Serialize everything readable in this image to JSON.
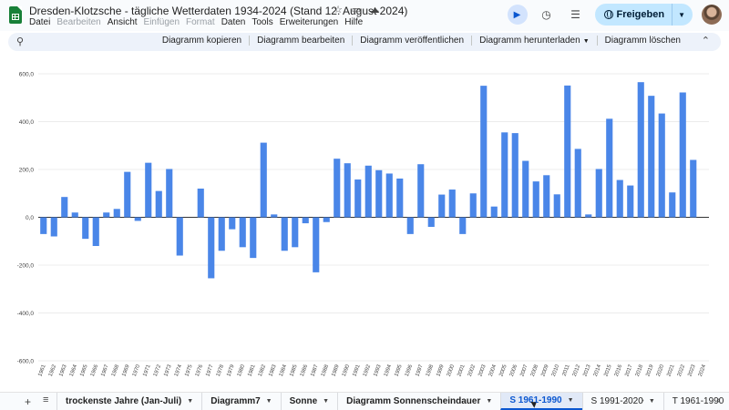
{
  "document": {
    "title": "Dresden-Klotzsche - tägliche Wetterdaten 1934-2024 (Stand 12. August 2024)"
  },
  "menu": [
    {
      "label": "Datei",
      "enabled": true
    },
    {
      "label": "Bearbeiten",
      "enabled": false
    },
    {
      "label": "Ansicht",
      "enabled": true
    },
    {
      "label": "Einfügen",
      "enabled": false
    },
    {
      "label": "Format",
      "enabled": false
    },
    {
      "label": "Daten",
      "enabled": true
    },
    {
      "label": "Tools",
      "enabled": true
    },
    {
      "label": "Erweiterungen",
      "enabled": true
    },
    {
      "label": "Hilfe",
      "enabled": true
    }
  ],
  "header": {
    "share_label": "Freigeben"
  },
  "chart_toolbar": {
    "actions": [
      "Diagramm kopieren",
      "Diagramm bearbeiten",
      "Diagramm veröffentlichen",
      "Diagramm herunterladen",
      "Diagramm löschen"
    ]
  },
  "chart_data": {
    "type": "bar",
    "categories": [
      "1961",
      "1962",
      "1963",
      "1964",
      "1965",
      "1966",
      "1967",
      "1968",
      "1969",
      "1970",
      "1971",
      "1972",
      "1973",
      "1974",
      "1975",
      "1976",
      "1977",
      "1978",
      "1979",
      "1980",
      "1981",
      "1982",
      "1983",
      "1984",
      "1985",
      "1986",
      "1987",
      "1988",
      "1989",
      "1990",
      "1991",
      "1992",
      "1993",
      "1994",
      "1995",
      "1996",
      "1997",
      "1998",
      "1999",
      "2000",
      "2001",
      "2002",
      "2003",
      "2004",
      "2005",
      "2006",
      "2007",
      "2008",
      "2009",
      "2010",
      "2011",
      "2012",
      "2013",
      "2014",
      "2015",
      "2016",
      "2017",
      "2018",
      "2019",
      "2020",
      "2021",
      "2022",
      "2023",
      "2024"
    ],
    "values": [
      -70,
      -80,
      85,
      20,
      -90,
      -120,
      20,
      35,
      190,
      -15,
      228,
      110,
      202,
      -160,
      0,
      120,
      -255,
      -140,
      -50,
      -125,
      -170,
      312,
      12,
      -140,
      -125,
      -25,
      -230,
      -20,
      245,
      226,
      158,
      216,
      197,
      183,
      162,
      -70,
      222,
      -40,
      95,
      116,
      -70,
      100,
      550,
      45,
      355,
      352,
      236,
      150,
      176,
      96,
      551,
      286,
      12,
      202,
      412,
      156,
      133,
      565,
      508,
      434,
      104,
      522,
      240,
      0
    ],
    "yticks": [
      "600,0",
      "400,0",
      "200,0",
      "0,0",
      "-200,0",
      "-400,0",
      "-600,0"
    ],
    "ylim": [
      -600,
      600
    ],
    "bar_color": "#4a86e8",
    "title": "",
    "xlabel": "",
    "ylabel": ""
  },
  "sheet_tabs": [
    {
      "label": "trockenste Jahre (Jan-Juli)",
      "active": false
    },
    {
      "label": "Diagramm7",
      "active": false
    },
    {
      "label": "Sonne",
      "active": false
    },
    {
      "label": "Diagramm Sonnenscheindauer",
      "active": false
    },
    {
      "label": "S 1961-1990",
      "active": true
    },
    {
      "label": "S 1991-2020",
      "active": false
    },
    {
      "label": "T 1961-1990",
      "active": false
    }
  ]
}
